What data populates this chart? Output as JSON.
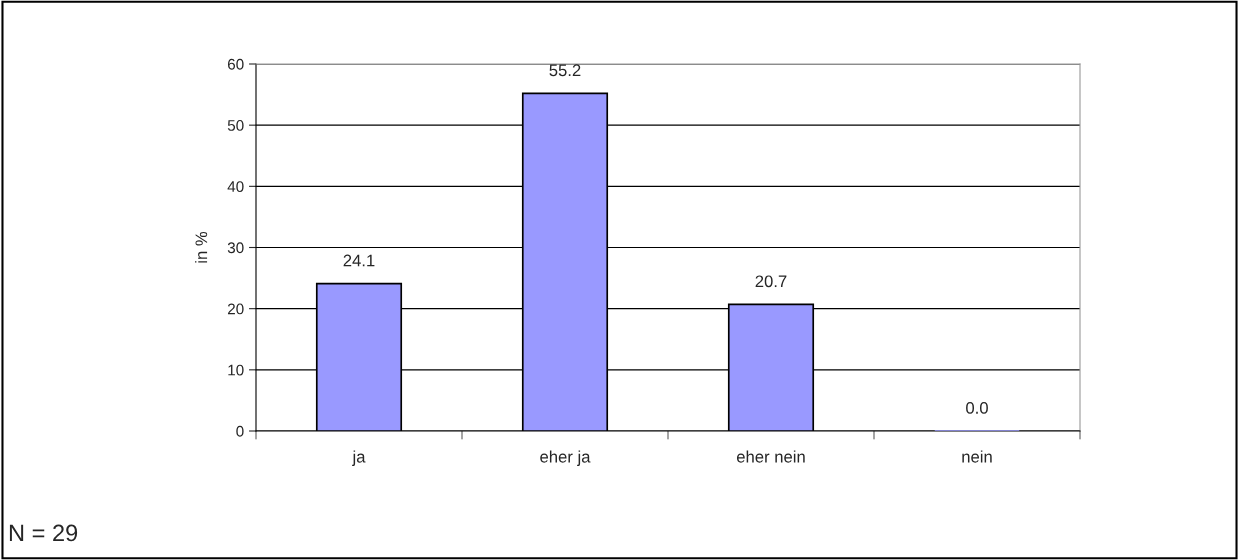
{
  "chart_data": {
    "type": "bar",
    "ylabel": "in %",
    "categories": [
      "ja",
      "eher ja",
      "eher nein",
      "nein"
    ],
    "values": [
      24.1,
      55.2,
      20.7,
      0.0
    ],
    "value_labels": [
      "24.1",
      "55.2",
      "20.7",
      "0.0"
    ],
    "color": "#9999ff",
    "ylim": [
      0,
      60
    ],
    "yticks": [
      0,
      10,
      20,
      30,
      40,
      50,
      60
    ],
    "grid": "y",
    "annotations": [
      "N = 29"
    ]
  }
}
